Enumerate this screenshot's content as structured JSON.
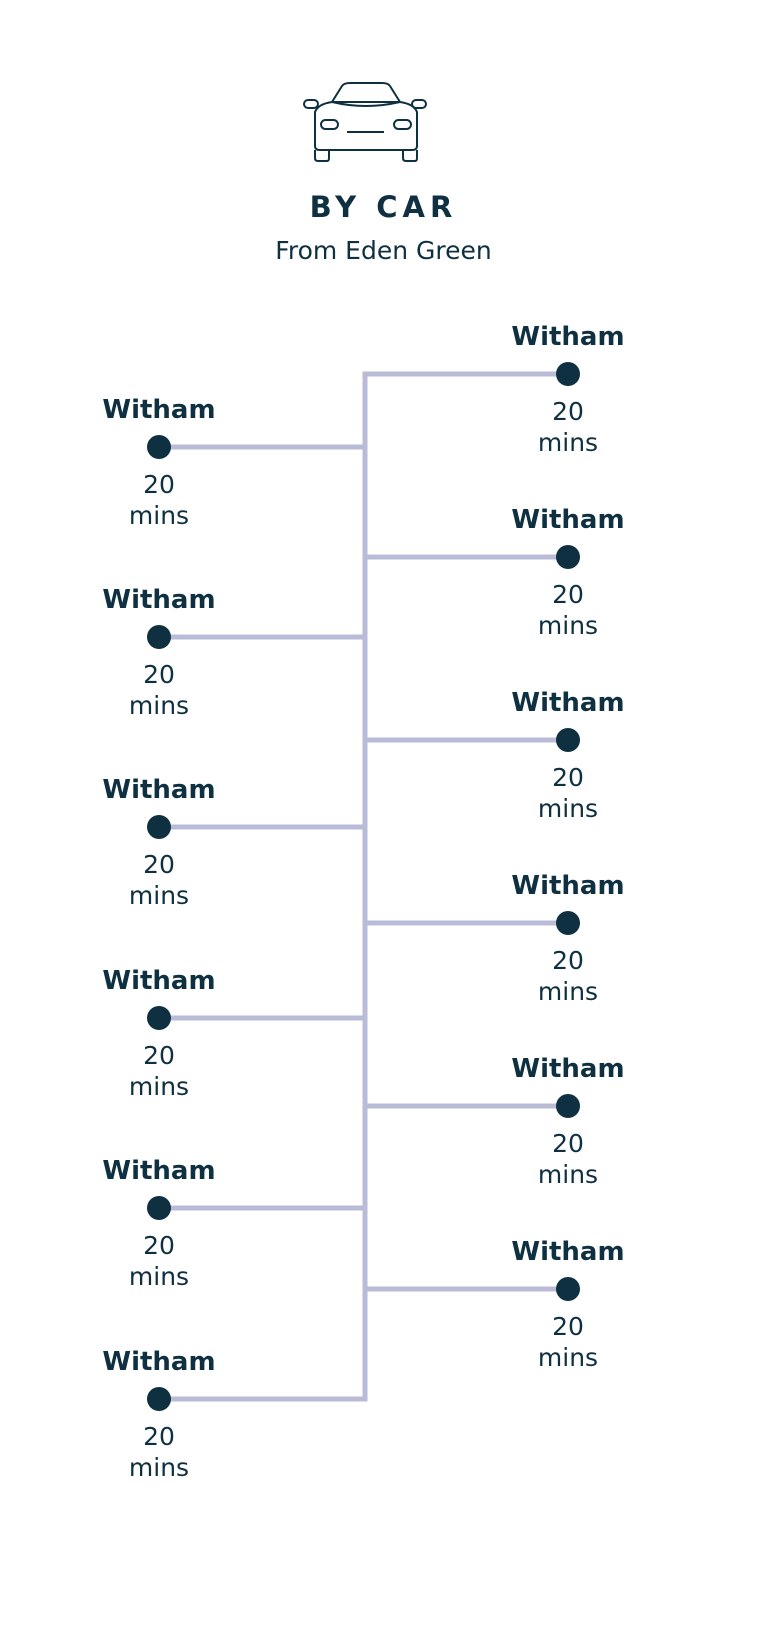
{
  "header": {
    "icon": "car-icon",
    "title": "BY CAR",
    "subtitle": "From Eden Green"
  },
  "colors": {
    "text": "#0e3040",
    "line": "#babbd6",
    "dot": "#0e3040"
  },
  "left_stops": [
    {
      "place": "Witham",
      "time": "20",
      "unit": "mins"
    },
    {
      "place": "Witham",
      "time": "20",
      "unit": "mins"
    },
    {
      "place": "Witham",
      "time": "20",
      "unit": "mins"
    },
    {
      "place": "Witham",
      "time": "20",
      "unit": "mins"
    },
    {
      "place": "Witham",
      "time": "20",
      "unit": "mins"
    },
    {
      "place": "Witham",
      "time": "20",
      "unit": "mins"
    }
  ],
  "right_stops": [
    {
      "place": "Witham",
      "time": "20",
      "unit": "mins"
    },
    {
      "place": "Witham",
      "time": "20",
      "unit": "mins"
    },
    {
      "place": "Witham",
      "time": "20",
      "unit": "mins"
    },
    {
      "place": "Witham",
      "time": "20",
      "unit": "mins"
    },
    {
      "place": "Witham",
      "time": "20",
      "unit": "mins"
    },
    {
      "place": "Witham",
      "time": "20",
      "unit": "mins"
    }
  ]
}
